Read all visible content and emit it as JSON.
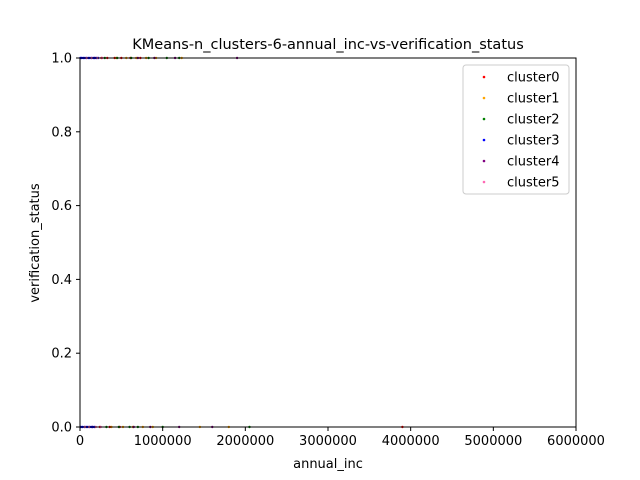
{
  "chart_data": {
    "type": "scatter",
    "title": "KMeans-n_clusters-6-annual_inc-vs-verification_status",
    "xlabel": "annual_inc",
    "ylabel": "verification_status",
    "xlim": [
      0,
      6000000
    ],
    "ylim": [
      0.0,
      1.0
    ],
    "xticks": [
      0,
      1000000,
      2000000,
      3000000,
      4000000,
      5000000,
      6000000
    ],
    "xtick_labels": [
      "0",
      "1000000",
      "2000000",
      "3000000",
      "4000000",
      "5000000",
      "6000000"
    ],
    "yticks": [
      0.0,
      0.2,
      0.4,
      0.6,
      0.8,
      1.0
    ],
    "ytick_labels": [
      "0.0",
      "0.2",
      "0.4",
      "0.6",
      "0.8",
      "1.0"
    ],
    "grid": false,
    "legend_position": "top-right",
    "series": [
      {
        "name": "cluster0",
        "color": "#ff0000",
        "points": [
          [
            180000,
            1
          ],
          [
            260000,
            1
          ],
          [
            330000,
            1
          ],
          [
            420000,
            1
          ],
          [
            500000,
            1
          ],
          [
            610000,
            1
          ],
          [
            730000,
            1
          ],
          [
            150000,
            0
          ],
          [
            240000,
            0
          ],
          [
            360000,
            0
          ],
          [
            480000,
            0
          ],
          [
            3900000,
            0
          ]
        ]
      },
      {
        "name": "cluster1",
        "color": "#ffa500",
        "points": [
          [
            440000,
            1
          ],
          [
            560000,
            1
          ],
          [
            680000,
            1
          ],
          [
            800000,
            1
          ],
          [
            920000,
            1
          ],
          [
            1230000,
            1
          ],
          [
            380000,
            0
          ],
          [
            520000,
            0
          ],
          [
            640000,
            0
          ],
          [
            760000,
            0
          ],
          [
            880000,
            0
          ],
          [
            1450000,
            0
          ],
          [
            1800000,
            0
          ]
        ]
      },
      {
        "name": "cluster2",
        "color": "#008000",
        "points": [
          [
            300000,
            1
          ],
          [
            450000,
            1
          ],
          [
            620000,
            1
          ],
          [
            830000,
            1
          ],
          [
            1050000,
            1
          ],
          [
            1200000,
            1
          ],
          [
            320000,
            0
          ],
          [
            470000,
            0
          ],
          [
            600000,
            0
          ],
          [
            700000,
            0
          ],
          [
            1000000,
            0
          ],
          [
            2050000,
            0
          ]
        ]
      },
      {
        "name": "cluster3",
        "color": "#0000ff",
        "points": [
          [
            5000,
            1
          ],
          [
            20000,
            1
          ],
          [
            40000,
            1
          ],
          [
            60000,
            1
          ],
          [
            80000,
            1
          ],
          [
            100000,
            1
          ],
          [
            120000,
            1
          ],
          [
            140000,
            1
          ],
          [
            160000,
            1
          ],
          [
            180000,
            1
          ],
          [
            200000,
            1
          ],
          [
            220000,
            1
          ],
          [
            10000,
            0
          ],
          [
            30000,
            0
          ],
          [
            55000,
            0
          ],
          [
            75000,
            0
          ],
          [
            95000,
            0
          ],
          [
            115000,
            0
          ],
          [
            135000,
            0
          ],
          [
            155000,
            0
          ],
          [
            175000,
            0
          ]
        ]
      },
      {
        "name": "cluster4",
        "color": "#800080",
        "points": [
          [
            700000,
            1
          ],
          [
            900000,
            1
          ],
          [
            1150000,
            1
          ],
          [
            1900000,
            1
          ],
          [
            650000,
            0
          ],
          [
            850000,
            0
          ],
          [
            1200000,
            0
          ],
          [
            1600000,
            0
          ]
        ]
      },
      {
        "name": "cluster5",
        "color": "#ff69b4",
        "points": [
          [
            80000,
            1
          ],
          [
            140000,
            1
          ],
          [
            210000,
            1
          ],
          [
            270000,
            1
          ],
          [
            60000,
            0
          ],
          [
            110000,
            0
          ],
          [
            190000,
            0
          ],
          [
            250000,
            0
          ]
        ]
      }
    ]
  }
}
